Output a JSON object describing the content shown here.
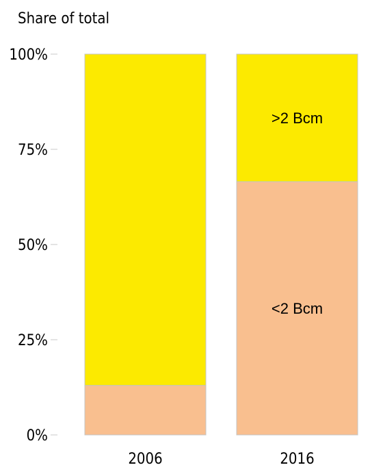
{
  "chart_data": {
    "type": "bar",
    "stacked": true,
    "ylabel": "Share of total",
    "categories": [
      "2006",
      "2016"
    ],
    "series": [
      {
        "name": "<2 Bcm",
        "values": [
          13,
          66.5
        ],
        "color": "#F9BF8F"
      },
      {
        "name": ">2 Bcm",
        "values": [
          87,
          33.5
        ],
        "color": "#FCEA00"
      }
    ],
    "yticks": [
      "0%",
      "25%",
      "50%",
      "75%",
      "100%"
    ],
    "ylim": [
      0,
      100
    ],
    "grid": false,
    "legend": "none",
    "segment_labels": [
      {
        "category": "2016",
        "series": ">2 Bcm",
        "text": ">2 Bcm"
      },
      {
        "category": "2016",
        "series": "<2 Bcm",
        "text": "<2 Bcm"
      }
    ]
  }
}
